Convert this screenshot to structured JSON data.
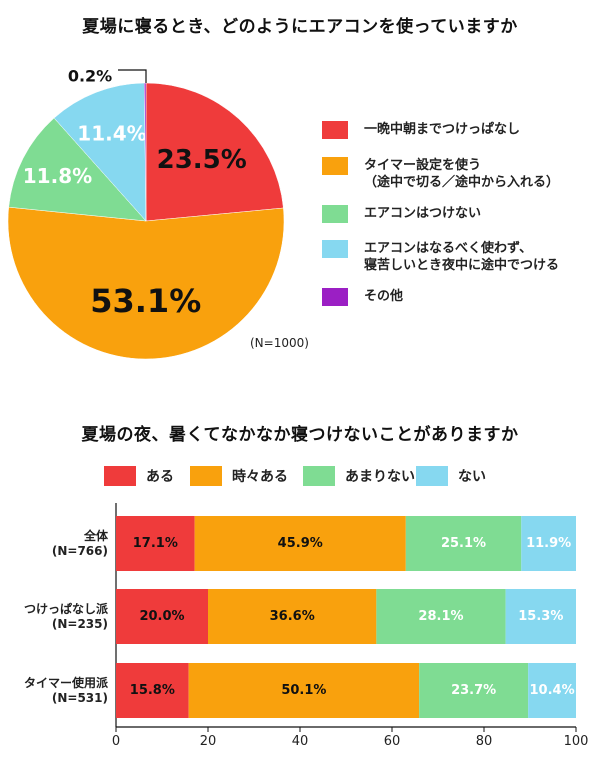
{
  "chart_data": [
    {
      "type": "pie",
      "title": "夏場に寝るとき、どのようにエアコンを使っていますか",
      "slices": [
        {
          "label": "一晩中朝までつけっぱなし",
          "value": 23.5,
          "value_label": "23.5%",
          "color": "#ef3b3b"
        },
        {
          "label": "タイマー設定を使う\n（途中で切る／途中から入れる）",
          "value": 53.1,
          "value_label": "53.1%",
          "color": "#f9a10d"
        },
        {
          "label": "エアコンはつけない",
          "value": 11.8,
          "value_label": "11.8%",
          "color": "#7fdc93"
        },
        {
          "label": "エアコンはなるべく使わず、\n寝苦しいとき夜中に途中でつける",
          "value": 11.4,
          "value_label": "11.4%",
          "color": "#86d8f0"
        },
        {
          "label": "その他",
          "value": 0.2,
          "value_label": "0.2%",
          "color": "#9b1fc4"
        }
      ],
      "note": "(N=1000)"
    },
    {
      "type": "bar",
      "orientation": "horizontal",
      "stacked": true,
      "title": "夏場の夜、暑くてなかなか寝つけないことがありますか",
      "categories": [
        "全体\n(N=766)",
        "つけっぱなし派\n(N=235)",
        "タイマー使用派\n(N=531)"
      ],
      "series": [
        {
          "name": "ある",
          "color": "#ef3b3b",
          "values": [
            17.1,
            20.0,
            15.8
          ],
          "labels": [
            "17.1%",
            "20.0%",
            "15.8%"
          ]
        },
        {
          "name": "時々ある",
          "color": "#f9a10d",
          "values": [
            45.9,
            36.6,
            50.1
          ],
          "labels": [
            "45.9%",
            "36.6%",
            "50.1%"
          ]
        },
        {
          "name": "あまりない",
          "color": "#7fdc93",
          "values": [
            25.1,
            28.1,
            23.7
          ],
          "labels": [
            "25.1%",
            "28.1%",
            "23.7%"
          ]
        },
        {
          "name": "ない",
          "color": "#86d8f0",
          "values": [
            11.9,
            15.3,
            10.4
          ],
          "labels": [
            "11.9%",
            "15.3%",
            "10.4%"
          ]
        }
      ],
      "xlim": [
        0,
        100
      ],
      "xticks": [
        "0",
        "20",
        "40",
        "60",
        "80",
        "100"
      ]
    }
  ]
}
